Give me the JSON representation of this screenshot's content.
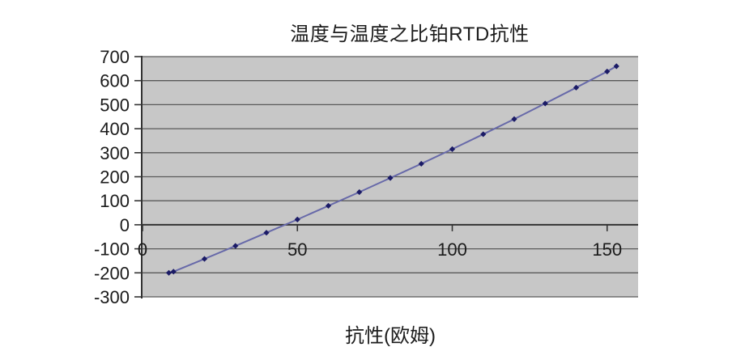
{
  "page": {
    "background": "#ffffff"
  },
  "chart": {
    "title": "温度与温度之比铂RTD抗性",
    "x_axis_title": "抗性(欧姆)"
  },
  "chart_data": {
    "type": "line",
    "title": "温度与温度之比铂RTD抗性",
    "xlabel": "抗性(欧姆)",
    "ylabel": "",
    "x": [
      8.5,
      10,
      20,
      30,
      40,
      50,
      60,
      70,
      80,
      90,
      100,
      110,
      120,
      130,
      140,
      150,
      153
    ],
    "y": [
      -200,
      -195,
      -142,
      -88,
      -33,
      22,
      79,
      136,
      195,
      254,
      315,
      377,
      440,
      505,
      571,
      638,
      660
    ],
    "xlim": [
      0,
      160
    ],
    "ylim": [
      -300,
      700
    ],
    "x_ticks": [
      0,
      50,
      100,
      150
    ],
    "y_ticks": [
      700,
      600,
      500,
      400,
      300,
      200,
      100,
      0,
      -100,
      -200,
      -300
    ],
    "grid": "horizontal-only",
    "legend": "none",
    "marker": "diamond",
    "colors": {
      "plot_bg": "#c7c7c7",
      "gridline": "#5a5a5a",
      "axis": "#333333",
      "line": "#6769a9",
      "marker": "#1b1b66",
      "text": "#1c1c1c"
    }
  }
}
